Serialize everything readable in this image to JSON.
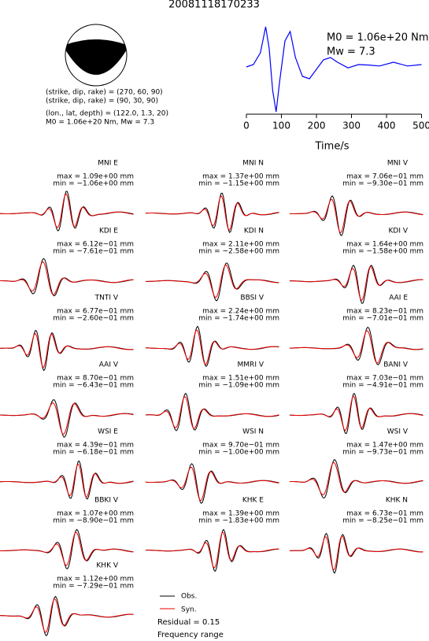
{
  "header": {
    "title": "20081118170233"
  },
  "mechanism": {
    "lines": [
      "(strike, dip, rake) = (270, 60, 90)",
      "(strike, dip, rake) = (90, 30, 90)",
      "(lon., lat, depth) = (122.0, 1.3, 20)",
      "M0 = 1.06e+20 Nm, Mw = 7.3"
    ]
  },
  "chart_data": {
    "type": "line",
    "x_label": "Time/s",
    "annotations": [
      "M0 = 1.06e+20 Nm",
      "Mw = 7.3"
    ],
    "x": [
      0,
      20,
      40,
      55,
      65,
      75,
      85,
      95,
      110,
      125,
      140,
      160,
      180,
      200,
      220,
      240,
      260,
      290,
      320,
      350,
      380,
      420,
      460,
      500
    ],
    "series": [
      {
        "color": "#0000ff",
        "values": [
          0,
          0.05,
          0.3,
          0.85,
          0.4,
          -0.5,
          -0.95,
          -0.3,
          0.55,
          0.75,
          0.2,
          -0.2,
          -0.25,
          -0.05,
          0.15,
          0.2,
          0.1,
          -0.02,
          0.05,
          0.04,
          0.02,
          0.1,
          0.02,
          0.05
        ]
      }
    ],
    "xlim": [
      0,
      510
    ],
    "xticks": [
      0,
      100,
      200,
      300,
      400,
      500
    ]
  },
  "stations": [
    {
      "label": "MNI E",
      "max": "max = 1.09e+00 mm",
      "min": "min = −1.06e+00 mm"
    },
    {
      "label": "MNI N",
      "max": "max = 1.37e+00 mm",
      "min": "min = −1.15e+00 mm"
    },
    {
      "label": "MNI V",
      "max": "max = 7.06e−01 mm",
      "min": "min = −9.30e−01 mm"
    },
    {
      "label": "KDI E",
      "max": "max = 6.12e−01 mm",
      "min": "min = −7.61e−01 mm"
    },
    {
      "label": "KDI N",
      "max": "max = 2.11e+00 mm",
      "min": "min = −2.58e+00 mm"
    },
    {
      "label": "KDI V",
      "max": "max = 1.64e+00 mm",
      "min": "min = −1.58e+00 mm"
    },
    {
      "label": "TNTI V",
      "max": "max = 6.77e−01 mm",
      "min": "min = −2.60e−01 mm"
    },
    {
      "label": "BBSI V",
      "max": "max = 2.24e+00 mm",
      "min": "min = −1.74e+00 mm"
    },
    {
      "label": "AAI E",
      "max": "max = 8.23e−01 mm",
      "min": "min = −7.01e−01 mm"
    },
    {
      "label": "AAI V",
      "max": "max = 8.70e−01 mm",
      "min": "min = −6.43e−01 mm"
    },
    {
      "label": "MMRI V",
      "max": "max = 1.51e+00 mm",
      "min": "min = −1.09e+00 mm"
    },
    {
      "label": "BANI V",
      "max": "max = 7.03e−01 mm",
      "min": "min = −4.91e−01 mm"
    },
    {
      "label": "WSI E",
      "max": "max = 4.39e−01 mm",
      "min": "min = −6.18e−01 mm"
    },
    {
      "label": "WSI N",
      "max": "max = 9.70e−01 mm",
      "min": "min = −1.00e+00 mm"
    },
    {
      "label": "WSI V",
      "max": "max = 1.47e+00 mm",
      "min": "min = −9.73e−01 mm"
    },
    {
      "label": "BBKI V",
      "max": "max = 1.07e+00 mm",
      "min": "min = −8.90e−01 mm"
    },
    {
      "label": "KHK E",
      "max": "max = 1.39e+00 mm",
      "min": "min = −1.83e+00 mm"
    },
    {
      "label": "KHK N",
      "max": "max = 6.73e−01 mm",
      "min": "min = −8.25e−01 mm"
    },
    {
      "label": "KHK V",
      "max": "max = 1.12e+00 mm",
      "min": "min = −7.29e−01 mm"
    }
  ],
  "legend": {
    "obs": "Obs.",
    "syn": "Syn.",
    "residual": "Residual = 0.15",
    "frequency": "Frequency range"
  }
}
